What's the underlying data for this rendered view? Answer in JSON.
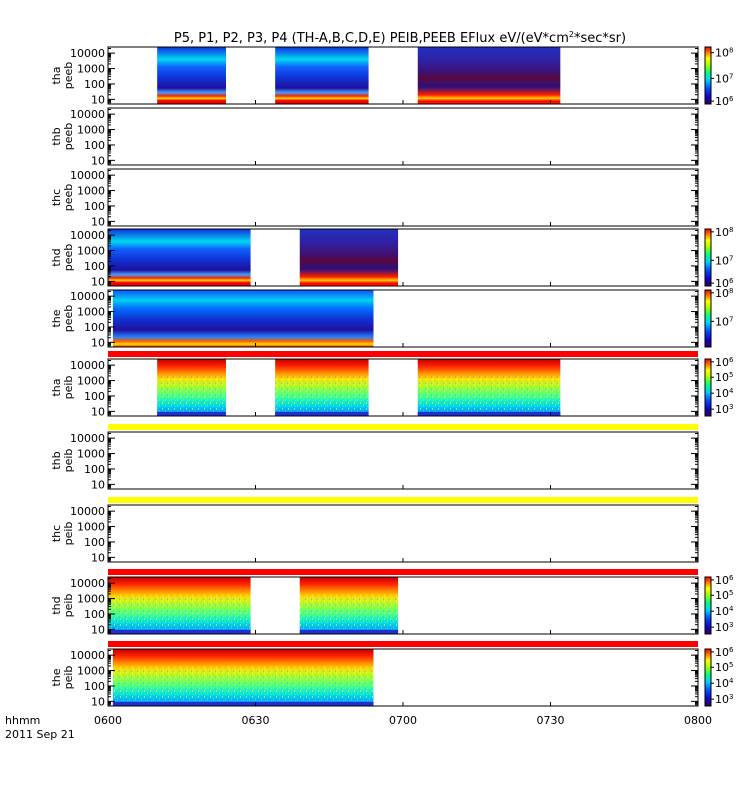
{
  "chart_data": {
    "type": "heatmap",
    "title": "P5, P1, P2, P3, P4 (TH-A,B,C,D,E) PEIB,PEEB EFlux eV/(eV*cm²*sec*sr)",
    "title_parts": {
      "pre": "P5, P1, P2, P3, P4 (TH-A,B,C,D,E) PEIB,PEEB EFlux eV/(eV*cm",
      "sup": "2",
      "post": "*sec*sr)"
    },
    "x_axis": {
      "label": "hhmm",
      "date": "2011 Sep 21",
      "ticks": [
        "0600",
        "0630",
        "0700",
        "0730",
        "0800"
      ],
      "range_minutes": [
        0,
        120
      ]
    },
    "y_ticks": [
      "10000",
      "1000",
      "100",
      "10"
    ],
    "y_tick_values": [
      10000,
      1000,
      100,
      10
    ],
    "y_range_eV": [
      5,
      25000
    ],
    "y_scale": "log",
    "colormap": "rainbow (purple-blue-cyan-green-yellow-red)",
    "panels": [
      {
        "label_top": "tha",
        "label_bottom": "peeb",
        "species": "electron",
        "intervals": [
          [
            10,
            24
          ],
          [
            34,
            53
          ],
          [
            63,
            92
          ]
        ],
        "colorbar": {
          "ticks": [
            {
              "base": "10",
              "exp": "8"
            },
            {
              "base": "10",
              "exp": "7"
            },
            {
              "base": "10",
              "exp": "6"
            }
          ],
          "tick_pos": [
            0.1,
            0.55,
            0.95
          ]
        }
      },
      {
        "label_top": "thb",
        "label_bottom": "peeb",
        "species": "electron",
        "intervals": []
      },
      {
        "label_top": "thc",
        "label_bottom": "peeb",
        "species": "electron",
        "intervals": []
      },
      {
        "label_top": "thd",
        "label_bottom": "peeb",
        "species": "electron",
        "intervals": [
          [
            0,
            29
          ],
          [
            39,
            59
          ]
        ],
        "colorbar": {
          "ticks": [
            {
              "base": "10",
              "exp": "8"
            },
            {
              "base": "10",
              "exp": "7"
            },
            {
              "base": "10",
              "exp": "6"
            }
          ],
          "tick_pos": [
            0.05,
            0.55,
            0.95
          ]
        }
      },
      {
        "label_top": "the",
        "label_bottom": "peeb",
        "species": "electron",
        "intervals": [
          [
            1,
            54
          ]
        ],
        "colorbar": {
          "ticks": [
            {
              "base": "10",
              "exp": "8"
            },
            {
              "base": "10",
              "exp": "7"
            }
          ],
          "tick_pos": [
            0.05,
            0.55
          ]
        }
      },
      {
        "label_top": "tha",
        "label_bottom": "peib",
        "species": "ion",
        "intervals": [
          [
            10,
            24
          ],
          [
            34,
            53
          ],
          [
            63,
            92
          ]
        ],
        "flag_bar_color": "#ff0000",
        "colorbar": {
          "ticks": [
            {
              "base": "10",
              "exp": "6"
            },
            {
              "base": "10",
              "exp": "5"
            },
            {
              "base": "10",
              "exp": "4"
            },
            {
              "base": "10",
              "exp": "3"
            }
          ],
          "tick_pos": [
            0.05,
            0.32,
            0.6,
            0.88
          ]
        }
      },
      {
        "label_top": "thb",
        "label_bottom": "peib",
        "species": "ion",
        "intervals": [],
        "flag_bar_color": "#ffff00"
      },
      {
        "label_top": "thc",
        "label_bottom": "peib",
        "species": "ion",
        "intervals": [],
        "flag_bar_color": "#ffff00"
      },
      {
        "label_top": "thd",
        "label_bottom": "peib",
        "species": "ion",
        "intervals": [
          [
            0,
            29
          ],
          [
            39,
            59
          ]
        ],
        "flag_bar_color": "#ff0000",
        "colorbar": {
          "ticks": [
            {
              "base": "10",
              "exp": "6"
            },
            {
              "base": "10",
              "exp": "5"
            },
            {
              "base": "10",
              "exp": "4"
            },
            {
              "base": "10",
              "exp": "3"
            }
          ],
          "tick_pos": [
            0.05,
            0.32,
            0.6,
            0.88
          ]
        }
      },
      {
        "label_top": "the",
        "label_bottom": "peib",
        "species": "ion",
        "intervals": [
          [
            1,
            54
          ]
        ],
        "flag_bar_color": "#ff0000",
        "colorbar": {
          "ticks": [
            {
              "base": "10",
              "exp": "6"
            },
            {
              "base": "10",
              "exp": "5"
            },
            {
              "base": "10",
              "exp": "4"
            },
            {
              "base": "10",
              "exp": "3"
            }
          ],
          "tick_pos": [
            0.05,
            0.32,
            0.6,
            0.88
          ]
        }
      }
    ]
  }
}
